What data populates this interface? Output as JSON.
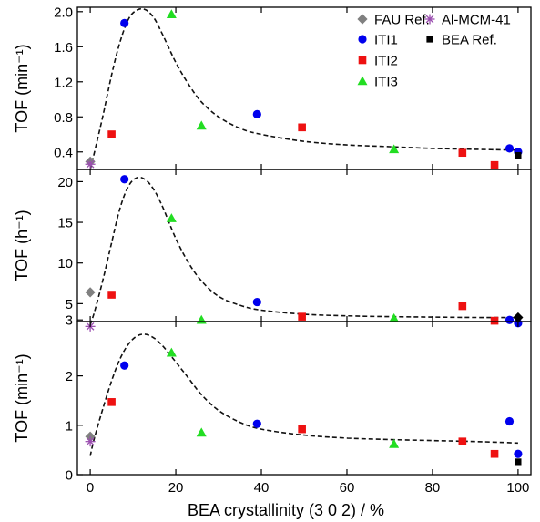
{
  "chart_data": [
    {
      "type": "scatter",
      "ylabel": "TOF (min⁻¹)",
      "ylim": [
        0.2,
        2.05
      ],
      "yticks": [
        0.4,
        0.8,
        1.2,
        1.6,
        2.0
      ],
      "ytick_labels": [
        "0.4",
        "0.8",
        "1.2",
        "1.6",
        "2.0"
      ],
      "series": [
        {
          "name": "FAU Ref.",
          "marker": "diamond",
          "color": "#808080",
          "points": [
            [
              0,
              0.29
            ]
          ]
        },
        {
          "name": "ITI1",
          "marker": "circle",
          "color": "#0000ee",
          "points": [
            [
              8,
              1.87
            ],
            [
              39,
              0.83
            ],
            [
              98,
              0.44
            ],
            [
              100,
              0.4
            ]
          ]
        },
        {
          "name": "ITI2",
          "marker": "square",
          "color": "#ee1111",
          "points": [
            [
              5,
              0.6
            ],
            [
              49.5,
              0.68
            ],
            [
              87,
              0.39
            ],
            [
              94.5,
              0.25
            ]
          ]
        },
        {
          "name": "ITI3",
          "marker": "triangle",
          "color": "#22dd22",
          "points": [
            [
              19,
              1.97
            ],
            [
              26,
              0.7
            ],
            [
              71,
              0.43
            ]
          ]
        },
        {
          "name": "Al-MCM-41",
          "marker": "asterisk",
          "color": "#9b4fb0",
          "points": [
            [
              0,
              0.26
            ]
          ]
        },
        {
          "name": "BEA Ref.",
          "marker": "square-small",
          "color": "#000000",
          "points": [
            [
              100,
              0.36
            ]
          ]
        }
      ],
      "fit_curve": [
        [
          0,
          0.2
        ],
        [
          1,
          0.4
        ],
        [
          3,
          0.82
        ],
        [
          5,
          1.28
        ],
        [
          7,
          1.66
        ],
        [
          9,
          1.92
        ],
        [
          11,
          2.02
        ],
        [
          13,
          2.02
        ],
        [
          15,
          1.92
        ],
        [
          17,
          1.73
        ],
        [
          20,
          1.42
        ],
        [
          23,
          1.17
        ],
        [
          26,
          0.97
        ],
        [
          30,
          0.8
        ],
        [
          35,
          0.67
        ],
        [
          40,
          0.6
        ],
        [
          50,
          0.52
        ],
        [
          60,
          0.48
        ],
        [
          70,
          0.46
        ],
        [
          80,
          0.44
        ],
        [
          90,
          0.43
        ],
        [
          100,
          0.42
        ]
      ]
    },
    {
      "type": "scatter",
      "ylabel": "TOF (h⁻¹)",
      "ylim": [
        2.8,
        21.5
      ],
      "yticks": [
        3,
        5,
        10,
        15,
        20
      ],
      "ytick_labels": [
        "3",
        "5",
        "10",
        "15",
        "20"
      ],
      "series": [
        {
          "name": "FAU Ref.",
          "marker": "diamond",
          "color": "#808080",
          "points": [
            [
              0,
              6.4
            ]
          ]
        },
        {
          "name": "ITI1",
          "marker": "circle",
          "color": "#0000ee",
          "points": [
            [
              8,
              20.3
            ],
            [
              39,
              5.2
            ],
            [
              98,
              3.0
            ],
            [
              100,
              2.6
            ]
          ]
        },
        {
          "name": "ITI2",
          "marker": "square",
          "color": "#ee1111",
          "points": [
            [
              5,
              6.1
            ],
            [
              49.5,
              3.4
            ],
            [
              87,
              4.7
            ],
            [
              94.5,
              2.9
            ]
          ]
        },
        {
          "name": "ITI3",
          "marker": "triangle",
          "color": "#22dd22",
          "points": [
            [
              19,
              15.5
            ],
            [
              26,
              3.0
            ],
            [
              71,
              3.2
            ]
          ]
        },
        {
          "name": "Al-MCM-41",
          "marker": "asterisk",
          "color": "#9b4fb0",
          "points": [
            [
              0,
              2.2
            ]
          ]
        },
        {
          "name": "BEA Ref.",
          "marker": "diamond",
          "color": "#000000",
          "points": [
            [
              100,
              3.3
            ]
          ]
        }
      ],
      "fit_curve": [
        [
          0,
          2.4
        ],
        [
          1,
          4.0
        ],
        [
          3,
          8.0
        ],
        [
          5,
          12.5
        ],
        [
          7,
          16.8
        ],
        [
          9,
          19.5
        ],
        [
          11,
          20.5
        ],
        [
          13,
          20.2
        ],
        [
          15,
          18.9
        ],
        [
          17,
          16.8
        ],
        [
          20,
          13.0
        ],
        [
          23,
          10.0
        ],
        [
          26,
          7.8
        ],
        [
          30,
          5.9
        ],
        [
          35,
          4.8
        ],
        [
          40,
          4.2
        ],
        [
          50,
          3.7
        ],
        [
          60,
          3.5
        ],
        [
          70,
          3.4
        ],
        [
          80,
          3.35
        ],
        [
          90,
          3.3
        ],
        [
          100,
          3.3
        ]
      ]
    },
    {
      "type": "scatter",
      "xlabel": "BEA crystallinity (3 0 2) / %",
      "ylabel": "TOF (min⁻¹)",
      "xlim": [
        -3,
        103
      ],
      "xticks": [
        0,
        20,
        40,
        60,
        80,
        100
      ],
      "xtick_labels": [
        "0",
        "20",
        "40",
        "60",
        "80",
        "100"
      ],
      "ylim": [
        0,
        3.1
      ],
      "yticks": [
        0,
        1,
        2
      ],
      "ytick_labels": [
        "0",
        "1",
        "2"
      ],
      "series": [
        {
          "name": "FAU Ref.",
          "marker": "diamond",
          "color": "#808080",
          "points": [
            [
              0,
              0.77
            ]
          ]
        },
        {
          "name": "ITI1",
          "marker": "circle",
          "color": "#0000ee",
          "points": [
            [
              8,
              2.21
            ],
            [
              39,
              1.03
            ],
            [
              98,
              1.08
            ],
            [
              100,
              0.42
            ]
          ]
        },
        {
          "name": "ITI2",
          "marker": "square",
          "color": "#ee1111",
          "points": [
            [
              5,
              1.47
            ],
            [
              49.5,
              0.92
            ],
            [
              87,
              0.67
            ],
            [
              94.5,
              0.42
            ]
          ]
        },
        {
          "name": "ITI3",
          "marker": "triangle",
          "color": "#22dd22",
          "points": [
            [
              19,
              2.47
            ],
            [
              26,
              0.85
            ],
            [
              71,
              0.62
            ]
          ]
        },
        {
          "name": "Al-MCM-41",
          "marker": "asterisk",
          "color": "#9b4fb0",
          "points": [
            [
              0,
              0.67
            ]
          ]
        },
        {
          "name": "BEA Ref.",
          "marker": "square-small",
          "color": "#000000",
          "points": [
            [
              100,
              0.26
            ]
          ]
        }
      ],
      "fit_curve": [
        [
          0,
          0.38
        ],
        [
          1,
          0.75
        ],
        [
          3,
          1.35
        ],
        [
          5,
          1.9
        ],
        [
          7,
          2.35
        ],
        [
          9,
          2.65
        ],
        [
          11,
          2.81
        ],
        [
          13,
          2.84
        ],
        [
          15,
          2.76
        ],
        [
          17,
          2.6
        ],
        [
          20,
          2.28
        ],
        [
          23,
          1.95
        ],
        [
          26,
          1.62
        ],
        [
          30,
          1.3
        ],
        [
          35,
          1.06
        ],
        [
          40,
          0.92
        ],
        [
          50,
          0.8
        ],
        [
          60,
          0.74
        ],
        [
          70,
          0.71
        ],
        [
          80,
          0.69
        ],
        [
          90,
          0.67
        ],
        [
          100,
          0.64
        ]
      ]
    }
  ],
  "legend": {
    "position": "top-right",
    "entries": [
      {
        "name": "FAU Ref.",
        "marker": "diamond",
        "color": "#808080"
      },
      {
        "name": "Al-MCM-41",
        "marker": "asterisk",
        "color": "#9b4fb0"
      },
      {
        "name": "ITI1",
        "marker": "circle",
        "color": "#0000ee"
      },
      {
        "name": "BEA Ref.",
        "marker": "square-small",
        "color": "#000000"
      },
      {
        "name": "ITI2",
        "marker": "square",
        "color": "#ee1111"
      },
      {
        "name": "ITI3",
        "marker": "triangle",
        "color": "#22dd22"
      }
    ]
  }
}
